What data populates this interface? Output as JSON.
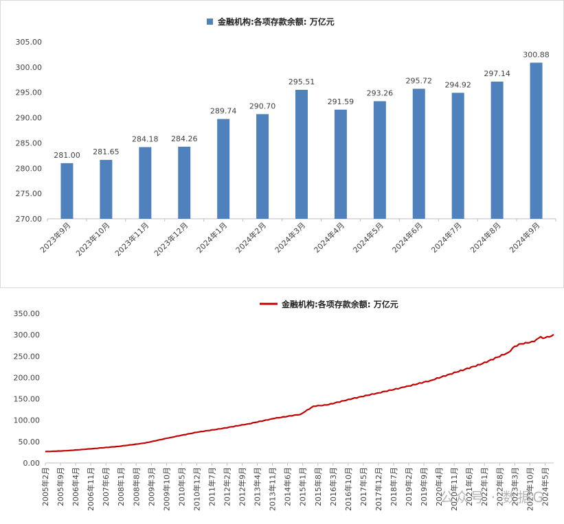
{
  "chart_data": [
    {
      "type": "bar",
      "legend": "金融机构:各项存款余额: 万亿元",
      "legend_position": "top",
      "color": "#4f81bd",
      "categories": [
        "2023年9月",
        "2023年10月",
        "2023年11月",
        "2023年12月",
        "2024年1月",
        "2024年2月",
        "2024年3月",
        "2024年4月",
        "2024年5月",
        "2024年6月",
        "2024年7月",
        "2024年8月",
        "2024年9月"
      ],
      "values": [
        281.0,
        281.65,
        284.18,
        284.26,
        289.74,
        290.7,
        295.51,
        291.59,
        293.26,
        295.72,
        294.92,
        297.14,
        300.88
      ],
      "data_labels": [
        "281.00",
        "281.65",
        "284.18",
        "284.26",
        "289.74",
        "290.70",
        "295.51",
        "291.59",
        "293.26",
        "295.72",
        "294.92",
        "297.14",
        "300.88"
      ],
      "ylim": [
        270,
        305
      ],
      "yticks": [
        "270.00",
        "275.00",
        "280.00",
        "285.00",
        "290.00",
        "295.00",
        "300.00",
        "305.00"
      ],
      "grid": false
    },
    {
      "type": "line",
      "legend": "金融机构:各项存款余额: 万亿元",
      "legend_position": "top",
      "color": "#c00000",
      "ylim": [
        0,
        350
      ],
      "yticks": [
        "0.00",
        "50.00",
        "100.00",
        "150.00",
        "200.00",
        "250.00",
        "300.00",
        "350.00"
      ],
      "xtick_labels": [
        "2005年2月",
        "2005年9月",
        "2006年4月",
        "2006年11月",
        "2007年6月",
        "2008年1月",
        "2008年8月",
        "2009年3月",
        "2009年10月",
        "2010年5月",
        "2010年12月",
        "2011年7月",
        "2012年2月",
        "2012年9月",
        "2013年4月",
        "2013年11月",
        "2014年6月",
        "2015年1月",
        "2015年8月",
        "2016年3月",
        "2016年10月",
        "2017年5月",
        "2017年12月",
        "2018年7月",
        "2019年2月",
        "2019年9月",
        "2020年4月",
        "2020年11月",
        "2021年6月",
        "2022年1月",
        "2022年8月",
        "2023年3月",
        "2023年10月",
        "2024年5月"
      ],
      "x_range": [
        "2005年2月",
        "2024年9月"
      ],
      "anchors": [
        [
          "2005-02",
          26.6
        ],
        [
          "2005-12",
          28.7
        ],
        [
          "2006-12",
          33.5
        ],
        [
          "2007-12",
          38.9
        ],
        [
          "2008-12",
          46.6
        ],
        [
          "2009-12",
          59.8
        ],
        [
          "2010-12",
          71.8
        ],
        [
          "2011-12",
          80.9
        ],
        [
          "2012-12",
          91.7
        ],
        [
          "2013-12",
          104.4
        ],
        [
          "2014-12",
          113.9
        ],
        [
          "2015-06",
          133.0
        ],
        [
          "2015-12",
          135.7
        ],
        [
          "2016-12",
          150.6
        ],
        [
          "2017-12",
          164.1
        ],
        [
          "2018-12",
          177.5
        ],
        [
          "2019-12",
          192.9
        ],
        [
          "2020-12",
          212.6
        ],
        [
          "2021-12",
          232.3
        ],
        [
          "2022-12",
          258.5
        ],
        [
          "2023-03",
          273.3
        ],
        [
          "2023-06",
          278.9
        ],
        [
          "2023-09",
          281.0
        ],
        [
          "2023-12",
          284.3
        ],
        [
          "2024-03",
          295.5
        ],
        [
          "2024-04",
          291.6
        ],
        [
          "2024-06",
          295.7
        ],
        [
          "2024-07",
          294.9
        ],
        [
          "2024-08",
          297.1
        ],
        [
          "2024-09",
          300.9
        ]
      ],
      "grid": false
    }
  ],
  "watermark": "公众号 · 数据G"
}
